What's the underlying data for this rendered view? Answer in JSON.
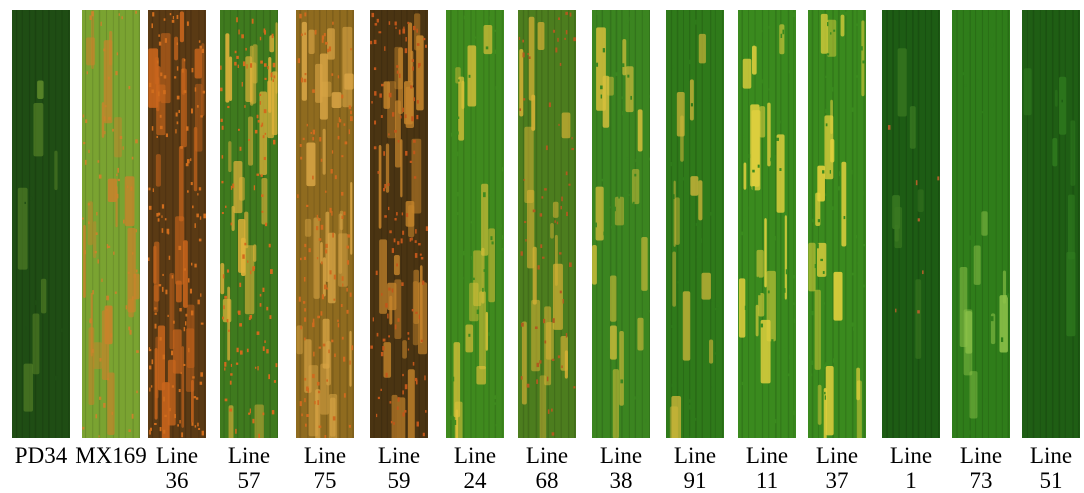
{
  "panels": [
    {
      "line1": "PD34",
      "line2": "",
      "base": "#1f4d14",
      "spots": "#5e8a2a",
      "rust": "#1f4d14",
      "level": 0.05
    },
    {
      "line1": "MX169",
      "line2": "",
      "base": "#7aa331",
      "spots": "#c9832b",
      "rust": "#c9832b",
      "level": 0.55
    },
    {
      "line1": "Line",
      "line2": "36",
      "base": "#5a3a14",
      "spots": "#c9651c",
      "rust": "#d06d1d",
      "level": 0.95
    },
    {
      "line1": "Line",
      "line2": "57",
      "base": "#3f7a1e",
      "spots": "#e0b23a",
      "rust": "#d46a1c",
      "level": 0.8
    },
    {
      "line1": "Line",
      "line2": "75",
      "base": "#8f6b1f",
      "spots": "#d9a545",
      "rust": "#cf6a1e",
      "level": 0.9
    },
    {
      "line1": "Line",
      "line2": "59",
      "base": "#4a3412",
      "spots": "#c5842b",
      "rust": "#c1561a",
      "level": 0.9
    },
    {
      "line1": "Line",
      "line2": "24",
      "base": "#3f8a1e",
      "spots": "#dcc13a",
      "rust": "#3f8a1e",
      "level": 0.4
    },
    {
      "line1": "Line",
      "line2": "68",
      "base": "#4c7d1e",
      "spots": "#d7b235",
      "rust": "#b05a1e",
      "level": 0.45
    },
    {
      "line1": "Line",
      "line2": "38",
      "base": "#3b8520",
      "spots": "#d8c03c",
      "rust": "#3b8520",
      "level": 0.35
    },
    {
      "line1": "Line",
      "line2": "91",
      "base": "#2f7a1a",
      "spots": "#d4b83a",
      "rust": "#2f7a1a",
      "level": 0.3
    },
    {
      "line1": "Line",
      "line2": "11",
      "base": "#3a8a1e",
      "spots": "#e0cf3e",
      "rust": "#3a8a1e",
      "level": 0.4
    },
    {
      "line1": "Line",
      "line2": "37",
      "base": "#3a8a1e",
      "spots": "#e6d23e",
      "rust": "#3a8a1e",
      "level": 0.45
    },
    {
      "line1": "Line",
      "line2": "1",
      "base": "#1d5c14",
      "spots": "#3b7a22",
      "rust": "#b0602a",
      "level": 0.05
    },
    {
      "line1": "Line",
      "line2": "73",
      "base": "#2f7d1a",
      "spots": "#8fc34a",
      "rust": "#2f7d1a",
      "level": 0.1
    },
    {
      "line1": "Line",
      "line2": "51",
      "base": "#1f5e14",
      "spots": "#2f7a1e",
      "rust": "#1f5e14",
      "level": 0.03
    }
  ]
}
